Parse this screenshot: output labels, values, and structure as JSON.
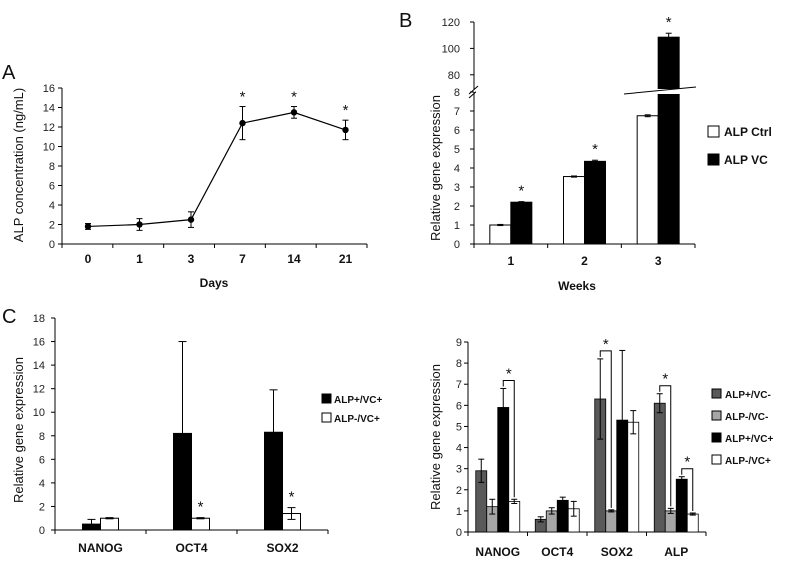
{
  "chart_data": [
    {
      "panel": "A",
      "type": "line",
      "ylabel": "ALP concentration (ng/mL)",
      "xlabel": "Days",
      "categories": [
        "0",
        "1",
        "3",
        "7",
        "14",
        "21"
      ],
      "values": [
        1.8,
        2.0,
        2.5,
        12.4,
        13.5,
        11.7
      ],
      "errors": [
        0.3,
        0.6,
        0.8,
        1.7,
        0.6,
        1.0
      ],
      "significant": [
        false,
        false,
        false,
        true,
        true,
        true
      ],
      "ylim": [
        0,
        16
      ],
      "yticks": [
        0,
        2,
        4,
        6,
        8,
        10,
        12,
        14,
        16
      ],
      "marker": "*"
    },
    {
      "panel": "B",
      "type": "bar",
      "ylabel": "Relative gene expression",
      "xlabel": "Weeks",
      "categories": [
        "1",
        "2",
        "3"
      ],
      "series": [
        {
          "name": "ALP Ctrl",
          "color": "#ffffff",
          "values": [
            1.0,
            3.55,
            6.75
          ],
          "errors": [
            0.03,
            0.03,
            0.05
          ],
          "significant": [
            false,
            false,
            false
          ]
        },
        {
          "name": "ALP VC",
          "color": "#000000",
          "values": [
            2.2,
            4.35,
            108.5
          ],
          "errors": [
            0.03,
            0.06,
            3.0
          ],
          "significant": [
            true,
            true,
            true
          ]
        }
      ],
      "ylim_lower": [
        0,
        8
      ],
      "ylim_upper": [
        70,
        120
      ],
      "yticks_lower": [
        0,
        1,
        2,
        3,
        4,
        5,
        6,
        7,
        8
      ],
      "yticks_upper": [
        80,
        100,
        120
      ],
      "axis_break": true,
      "legend": "right",
      "marker": "*"
    },
    {
      "panel": "C-left",
      "type": "bar",
      "ylabel": "Relative gene expression",
      "categories": [
        "NANOG",
        "OCT4",
        "SOX2"
      ],
      "series": [
        {
          "name": "ALP+/VC+",
          "color": "#000000",
          "values": [
            0.5,
            8.2,
            8.3
          ],
          "errors": [
            0.4,
            7.8,
            3.6
          ]
        },
        {
          "name": "ALP-/VC+",
          "color": "#ffffff",
          "values": [
            1.0,
            1.0,
            1.4
          ],
          "errors": [
            0.05,
            0.05,
            0.5
          ]
        }
      ],
      "significant_labels": [
        "",
        "*",
        "*"
      ],
      "ylim": [
        0,
        18
      ],
      "yticks": [
        0,
        2,
        4,
        6,
        8,
        10,
        12,
        14,
        16,
        18
      ],
      "legend": "right",
      "marker": "*"
    },
    {
      "panel": "C-right",
      "type": "bar",
      "ylabel": "Relative gene expression",
      "categories": [
        "NANOG",
        "OCT4",
        "SOX2",
        "ALP"
      ],
      "series": [
        {
          "name": "ALP+/VC-",
          "color": "#595959",
          "values": [
            2.9,
            0.6,
            6.3,
            6.1
          ],
          "errors": [
            0.55,
            0.12,
            1.9,
            0.45
          ]
        },
        {
          "name": "ALP-/VC-",
          "color": "#a6a6a6",
          "values": [
            1.2,
            1.0,
            1.0,
            1.0
          ],
          "errors": [
            0.35,
            0.15,
            0.05,
            0.12
          ]
        },
        {
          "name": "ALP+/VC+",
          "color": "#000000",
          "values": [
            5.9,
            1.5,
            5.3,
            2.5
          ],
          "errors": [
            0.9,
            0.15,
            3.3,
            0.12
          ]
        },
        {
          "name": "ALP-/VC+",
          "color": "#ffffff",
          "values": [
            1.45,
            1.1,
            5.2,
            0.85
          ],
          "errors": [
            0.1,
            0.35,
            0.55,
            0.05
          ]
        }
      ],
      "ylim": [
        0,
        9
      ],
      "yticks": [
        0,
        1,
        2,
        3,
        4,
        5,
        6,
        7,
        8,
        9
      ],
      "legend": "right",
      "marker": "*"
    }
  ],
  "panel_letters": {
    "a": "A",
    "b": "B",
    "c": "C"
  }
}
